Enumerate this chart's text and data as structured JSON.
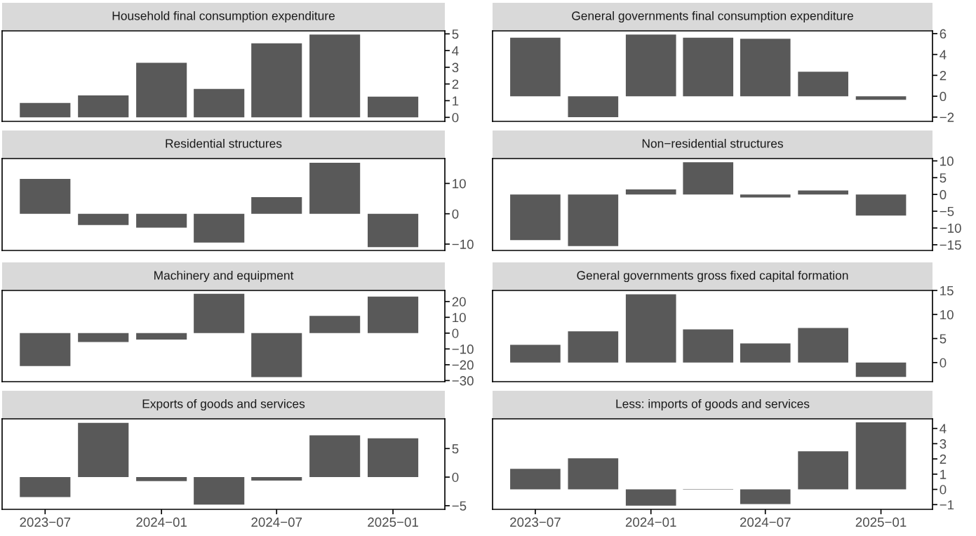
{
  "chart_data": [
    {
      "type": "bar",
      "title": "Household final consumption expenditure",
      "x": [
        "2023-07",
        "2023-10",
        "2024-01",
        "2024-04",
        "2024-07",
        "2024-10",
        "2025-01"
      ],
      "values": [
        0.86,
        1.31,
        3.27,
        1.7,
        4.43,
        4.96,
        1.24
      ],
      "color": "#595959",
      "xlim": [
        "2023-04-24",
        "2025-03-24"
      ],
      "ylim": [
        -0.24,
        5.18
      ],
      "yticks": [
        0,
        1,
        2,
        3,
        4,
        5
      ],
      "tick_labels": "y"
    },
    {
      "type": "bar",
      "title": "General governments final consumption expenditure",
      "x": [
        "2023-07",
        "2023-10",
        "2024-01",
        "2024-04",
        "2024-07",
        "2024-10",
        "2025-01"
      ],
      "values": [
        5.6,
        -2.0,
        5.9,
        5.6,
        5.5,
        2.35,
        -0.35
      ],
      "color": "#595959",
      "xlim": [
        "2023-04-24",
        "2025-03-24"
      ],
      "ylim": [
        -2.41,
        6.26
      ],
      "yticks": [
        -2,
        0,
        2,
        4,
        6
      ],
      "tick_labels": "y"
    },
    {
      "type": "bar",
      "title": "Residential structures",
      "x": [
        "2023-07",
        "2023-10",
        "2024-01",
        "2024-04",
        "2024-07",
        "2024-10",
        "2025-01"
      ],
      "values": [
        11.5,
        -3.7,
        -4.6,
        -9.5,
        5.5,
        16.8,
        -11.0
      ],
      "color": "#595959",
      "xlim": [
        "2023-04-24",
        "2025-03-24"
      ],
      "ylim": [
        -12.1,
        18.2
      ],
      "yticks": [
        -10,
        0,
        10
      ],
      "tick_labels": "y"
    },
    {
      "type": "bar",
      "title": "Non−residential structures",
      "x": [
        "2023-07",
        "2023-10",
        "2024-01",
        "2024-04",
        "2024-07",
        "2024-10",
        "2025-01"
      ],
      "values": [
        -13.6,
        -15.4,
        1.5,
        9.6,
        -0.9,
        1.2,
        -6.3
      ],
      "color": "#595959",
      "xlim": [
        "2023-04-24",
        "2025-03-24"
      ],
      "ylim": [
        -16.7,
        10.7
      ],
      "yticks": [
        -15,
        -10,
        -5,
        0,
        5,
        10
      ],
      "tick_labels": "y"
    },
    {
      "type": "bar",
      "title": "Machinery and equipment",
      "x": [
        "2023-07",
        "2023-10",
        "2024-01",
        "2024-04",
        "2024-07",
        "2024-10",
        "2025-01"
      ],
      "values": [
        -20.8,
        -5.6,
        -4.1,
        24.9,
        -27.8,
        10.9,
        23.1
      ],
      "color": "#595959",
      "xlim": [
        "2023-04-24",
        "2025-03-24"
      ],
      "ylim": [
        -30.7,
        27.0
      ],
      "yticks": [
        -30,
        -20,
        -10,
        0,
        10,
        20
      ],
      "tick_labels": "y"
    },
    {
      "type": "bar",
      "title": "General governments gross fixed capital formation",
      "x": [
        "2023-07",
        "2023-10",
        "2024-01",
        "2024-04",
        "2024-07",
        "2024-10",
        "2025-01"
      ],
      "values": [
        3.7,
        6.5,
        14.2,
        6.9,
        4.0,
        7.2,
        -3.0
      ],
      "color": "#595959",
      "xlim": [
        "2023-04-24",
        "2025-03-24"
      ],
      "ylim": [
        -3.97,
        15.0
      ],
      "yticks": [
        0,
        5,
        10,
        15
      ],
      "tick_labels": "y"
    },
    {
      "type": "bar",
      "title": "Exports of goods and services",
      "x": [
        "2023-07",
        "2023-10",
        "2024-01",
        "2024-04",
        "2024-07",
        "2024-10",
        "2025-01"
      ],
      "values": [
        -3.5,
        9.5,
        -0.7,
        -4.8,
        -0.6,
        7.3,
        6.8
      ],
      "color": "#595959",
      "xlim": [
        "2023-04-24",
        "2025-03-24"
      ],
      "ylim": [
        -5.64,
        10.2
      ],
      "yticks": [
        -5,
        0,
        5
      ],
      "xticks": [
        {
          "value": "2023-07",
          "label": "2023−07"
        },
        {
          "value": "2024-01",
          "label": "2024−01"
        },
        {
          "value": "2024-07",
          "label": "2024−07"
        },
        {
          "value": "2025-01",
          "label": "2025−01"
        }
      ]
    },
    {
      "type": "bar",
      "title": "Less: imports of goods and services",
      "x": [
        "2023-07",
        "2023-10",
        "2024-01",
        "2024-04",
        "2024-07",
        "2024-10",
        "2025-01"
      ],
      "values": [
        1.35,
        2.04,
        -1.07,
        0.02,
        -0.97,
        2.5,
        4.4
      ],
      "color": "#595959",
      "xlim": [
        "2023-04-24",
        "2025-03-24"
      ],
      "ylim": [
        -1.31,
        4.63
      ],
      "yticks": [
        -1,
        0,
        1,
        2,
        3,
        4
      ],
      "xticks": [
        {
          "value": "2023-07",
          "label": "2023−07"
        },
        {
          "value": "2024-01",
          "label": "2024−01"
        },
        {
          "value": "2024-07",
          "label": "2024−07"
        },
        {
          "value": "2025-01",
          "label": "2025−01"
        }
      ]
    }
  ]
}
